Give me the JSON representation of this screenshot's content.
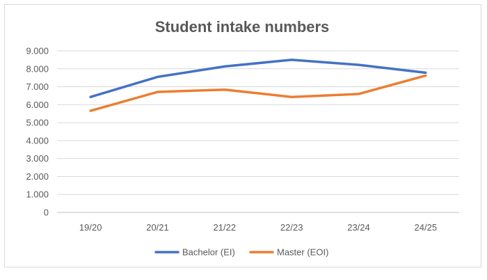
{
  "chart_data": {
    "type": "line",
    "title": "Student intake numbers",
    "xlabel": "",
    "ylabel": "",
    "categories": [
      "19/20",
      "20/21",
      "21/22",
      "22/23",
      "23/24",
      "24/25"
    ],
    "y_ticks": [
      "0",
      "1.000",
      "2.000",
      "3.000",
      "4.000",
      "5.000",
      "6.000",
      "7.000",
      "8.000",
      "9.000"
    ],
    "ylim": [
      0,
      9000
    ],
    "grid": true,
    "legend_position": "bottom",
    "series": [
      {
        "name": "Bachelor (EI)",
        "color": "#4472c4",
        "values": [
          6430,
          7550,
          8130,
          8500,
          8220,
          7780
        ]
      },
      {
        "name": "Master (EOI)",
        "color": "#ed7d31",
        "values": [
          5660,
          6710,
          6840,
          6430,
          6600,
          7620
        ]
      }
    ]
  }
}
